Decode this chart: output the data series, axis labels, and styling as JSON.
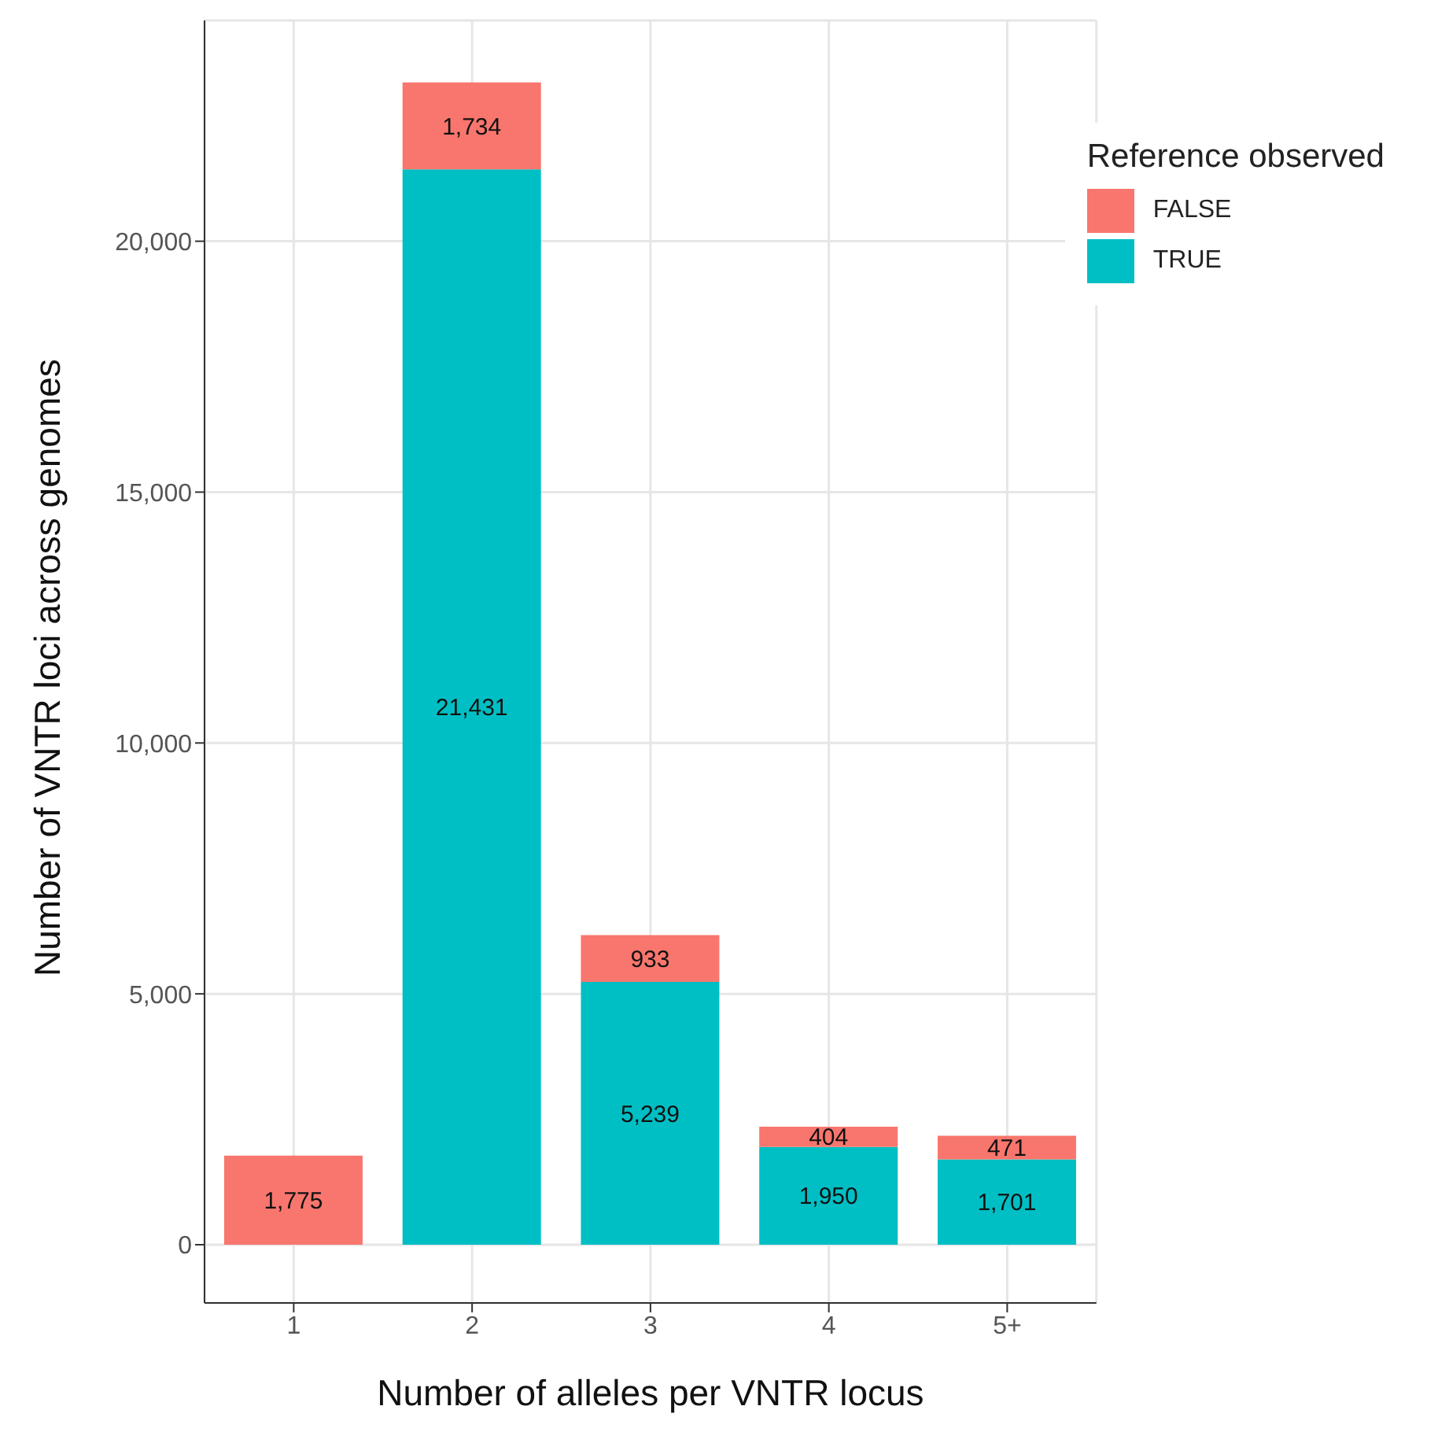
{
  "chart_data": {
    "type": "bar",
    "stacked": true,
    "xlabel": "Number of alleles per VNTR locus",
    "ylabel": "Number of VNTR loci across genomes",
    "legend_title": "Reference observed",
    "categories": [
      "1",
      "2",
      "3",
      "4",
      "5+"
    ],
    "series": [
      {
        "name": "TRUE",
        "color": "#00bfc4",
        "values": [
          null,
          21431,
          5239,
          1950,
          1701
        ],
        "value_labels": [
          null,
          "21,431",
          "5,239",
          "1,950",
          "1,701"
        ]
      },
      {
        "name": "FALSE",
        "color": "#f8766d",
        "values": [
          1775,
          1734,
          933,
          404,
          471
        ],
        "value_labels": [
          "1,775",
          "1,734",
          "933",
          "404",
          "471"
        ]
      }
    ],
    "ylim": [
      -1160,
      24400
    ],
    "yticks": [
      {
        "value": 0,
        "label": "0"
      },
      {
        "value": 5000,
        "label": "5,000"
      },
      {
        "value": 10000,
        "label": "10,000"
      },
      {
        "value": 15000,
        "label": "15,000"
      },
      {
        "value": 20000,
        "label": "20,000"
      }
    ],
    "grid": true,
    "legend": "top right"
  }
}
